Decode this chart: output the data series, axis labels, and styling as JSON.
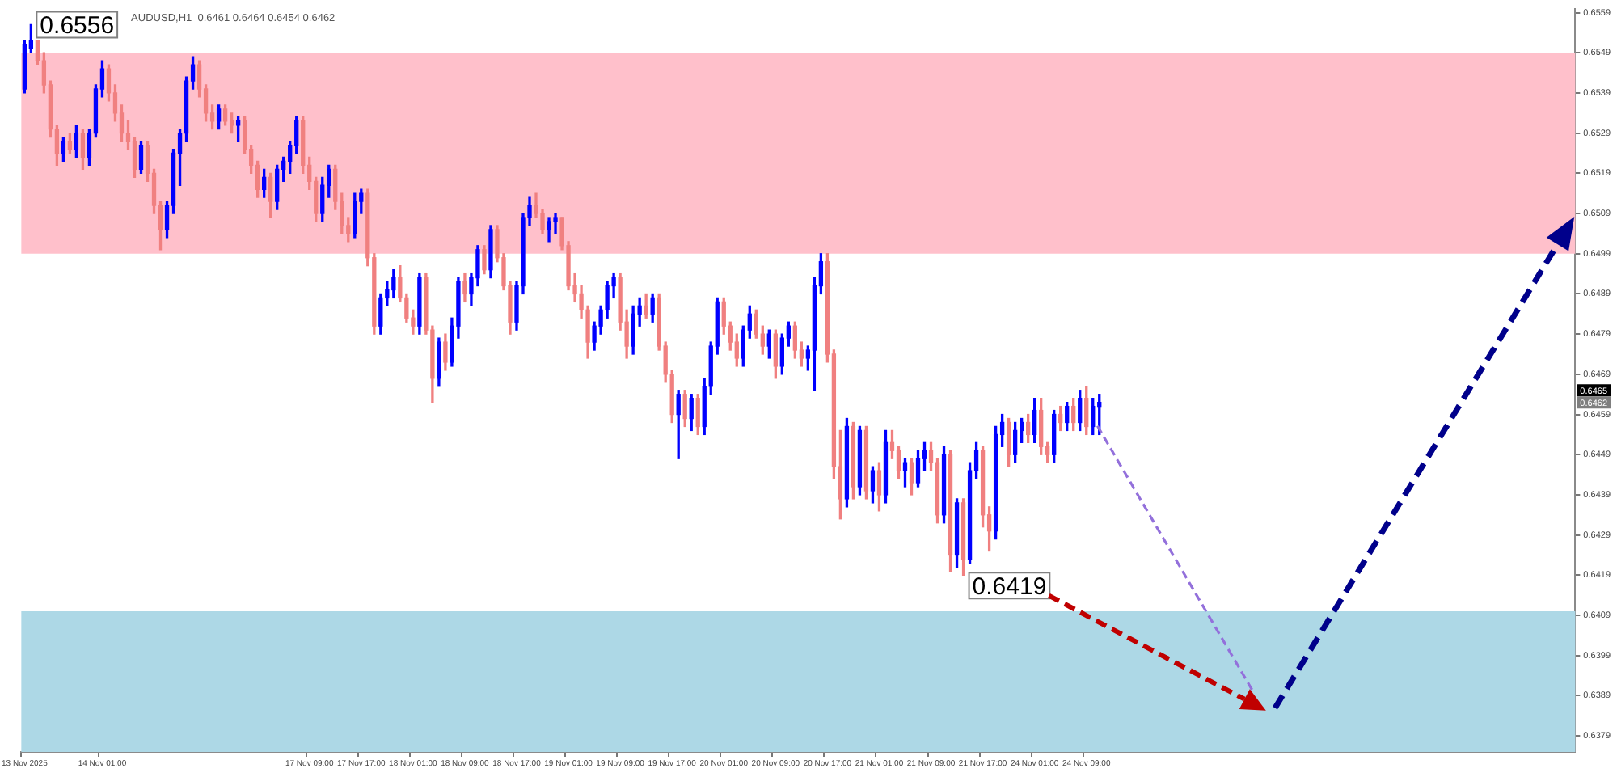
{
  "chart_data": {
    "type": "candlestick",
    "title": "AUDUSD,H1  0.6461 0.6464 0.6454 0.6462",
    "categories": [
      "13 Nov 2025",
      null,
      null,
      null,
      null,
      null,
      null,
      null,
      null,
      null,
      null,
      null,
      "14 Nov 01:00",
      null,
      null,
      null,
      null,
      null,
      null,
      null,
      null,
      null,
      null,
      null,
      null,
      null,
      null,
      null,
      null,
      null,
      null,
      null,
      null,
      null,
      null,
      null,
      null,
      null,
      null,
      null,
      null,
      null,
      null,
      null,
      "17 Nov 09:00",
      null,
      null,
      null,
      null,
      null,
      null,
      null,
      "17 Nov 17:00",
      null,
      null,
      null,
      null,
      null,
      null,
      null,
      "18 Nov 01:00",
      null,
      null,
      null,
      null,
      null,
      null,
      null,
      "18 Nov 09:00",
      null,
      null,
      null,
      null,
      null,
      null,
      null,
      "18 Nov 17:00",
      null,
      null,
      null,
      null,
      null,
      null,
      null,
      "19 Nov 01:00",
      null,
      null,
      null,
      null,
      null,
      null,
      null,
      "19 Nov 09:00",
      null,
      null,
      null,
      null,
      null,
      null,
      null,
      "19 Nov 17:00",
      null,
      null,
      null,
      null,
      null,
      null,
      null,
      "20 Nov 01:00",
      null,
      null,
      null,
      null,
      null,
      null,
      null,
      "20 Nov 09:00",
      null,
      null,
      null,
      null,
      null,
      null,
      null,
      "20 Nov 17:00",
      null,
      null,
      null,
      null,
      null,
      null,
      null,
      "21 Nov 01:00",
      null,
      null,
      null,
      null,
      null,
      null,
      null,
      "21 Nov 09:00",
      null,
      null,
      null,
      null,
      null,
      null,
      null,
      "21 Nov 17:00",
      null,
      null,
      null,
      null,
      null,
      null,
      null,
      "24 Nov 01:00",
      null,
      null,
      null,
      null,
      null,
      null,
      null,
      "24 Nov 09:00",
      null,
      null,
      null,
      null,
      null,
      null,
      null,
      null,
      null,
      null,
      null,
      null,
      null,
      null,
      null,
      null,
      null,
      null,
      null,
      null,
      null,
      null,
      null,
      null,
      null,
      null,
      null,
      null,
      null,
      null,
      null,
      null,
      null,
      null,
      null,
      null,
      null,
      null,
      null,
      null,
      null,
      null,
      null,
      null,
      null,
      null,
      null,
      null,
      null,
      null,
      null,
      null,
      null,
      null,
      null,
      null,
      null,
      null,
      null,
      null,
      null,
      null,
      null,
      null,
      null,
      null,
      null,
      null,
      null,
      null,
      null,
      null,
      null,
      null,
      null
    ],
    "ohlc": [
      [
        0.654,
        0.6552,
        0.6539,
        0.6551
      ],
      [
        0.655,
        0.6556,
        0.6549,
        0.6552
      ],
      [
        0.6552,
        0.6552,
        0.6546,
        0.6547
      ],
      [
        0.6547,
        0.6549,
        0.6539,
        0.6541
      ],
      [
        0.6541,
        0.6542,
        0.6528,
        0.653
      ],
      [
        0.653,
        0.6531,
        0.6521,
        0.6524
      ],
      [
        0.6524,
        0.6528,
        0.6522,
        0.6527
      ],
      [
        0.6527,
        0.6529,
        0.6524,
        0.6525
      ],
      [
        0.6525,
        0.6531,
        0.6523,
        0.6529
      ],
      [
        0.6529,
        0.653,
        0.652,
        0.6523
      ],
      [
        0.6523,
        0.653,
        0.6521,
        0.6529
      ],
      [
        0.6529,
        0.6541,
        0.6528,
        0.654
      ],
      [
        0.654,
        0.6547,
        0.6538,
        0.6545
      ],
      [
        0.6545,
        0.6546,
        0.6537,
        0.6539
      ],
      [
        0.6539,
        0.6541,
        0.6532,
        0.6534
      ],
      [
        0.6534,
        0.6536,
        0.6527,
        0.6529
      ],
      [
        0.6529,
        0.6532,
        0.6525,
        0.6527
      ],
      [
        0.6527,
        0.6528,
        0.6518,
        0.652
      ],
      [
        0.652,
        0.6527,
        0.6519,
        0.6526
      ],
      [
        0.6526,
        0.6527,
        0.6517,
        0.6519
      ],
      [
        0.6519,
        0.652,
        0.6509,
        0.6511
      ],
      [
        0.6511,
        0.6512,
        0.65,
        0.6505
      ],
      [
        0.6505,
        0.6512,
        0.6503,
        0.6511
      ],
      [
        0.6511,
        0.6525,
        0.6509,
        0.6524
      ],
      [
        0.6524,
        0.653,
        0.6516,
        0.6529
      ],
      [
        0.6529,
        0.6543,
        0.6527,
        0.6542
      ],
      [
        0.6542,
        0.6548,
        0.654,
        0.6546
      ],
      [
        0.6546,
        0.6547,
        0.6538,
        0.654
      ],
      [
        0.654,
        0.6541,
        0.6532,
        0.6534
      ],
      [
        0.6534,
        0.6536,
        0.653,
        0.6532
      ],
      [
        0.6532,
        0.6536,
        0.653,
        0.6535
      ],
      [
        0.6535,
        0.6536,
        0.6531,
        0.6532
      ],
      [
        0.6532,
        0.6534,
        0.6529,
        0.6531
      ],
      [
        0.6531,
        0.6533,
        0.6527,
        0.6532
      ],
      [
        0.6532,
        0.6533,
        0.6524,
        0.6525
      ],
      [
        0.6525,
        0.6526,
        0.6519,
        0.6521
      ],
      [
        0.6521,
        0.6522,
        0.6513,
        0.6515
      ],
      [
        0.6515,
        0.652,
        0.6513,
        0.6518
      ],
      [
        0.6518,
        0.6519,
        0.6508,
        0.6512
      ],
      [
        0.6512,
        0.6521,
        0.651,
        0.652
      ],
      [
        0.652,
        0.6523,
        0.6517,
        0.6522
      ],
      [
        0.6522,
        0.6527,
        0.6519,
        0.6526
      ],
      [
        0.6526,
        0.6533,
        0.6524,
        0.6532
      ],
      [
        0.6532,
        0.6533,
        0.6519,
        0.6521
      ],
      [
        0.6521,
        0.6523,
        0.6515,
        0.6517
      ],
      [
        0.6517,
        0.6518,
        0.6507,
        0.6509
      ],
      [
        0.6509,
        0.6518,
        0.6507,
        0.6516
      ],
      [
        0.6516,
        0.6521,
        0.6513,
        0.652
      ],
      [
        0.652,
        0.6521,
        0.651,
        0.6512
      ],
      [
        0.6512,
        0.6514,
        0.6504,
        0.6506
      ],
      [
        0.6506,
        0.6508,
        0.6502,
        0.6504
      ],
      [
        0.6504,
        0.6514,
        0.6503,
        0.6512
      ],
      [
        0.6512,
        0.6515,
        0.6509,
        0.6514
      ],
      [
        0.6514,
        0.6515,
        0.6496,
        0.6498
      ],
      [
        0.6498,
        0.6499,
        0.6479,
        0.6481
      ],
      [
        0.6481,
        0.6489,
        0.6479,
        0.6488
      ],
      [
        0.6488,
        0.6492,
        0.6486,
        0.649
      ],
      [
        0.649,
        0.6495,
        0.6488,
        0.6493
      ],
      [
        0.6493,
        0.6496,
        0.6487,
        0.6488
      ],
      [
        0.6488,
        0.6489,
        0.6482,
        0.6483
      ],
      [
        0.6483,
        0.6485,
        0.6479,
        0.6481
      ],
      [
        0.6481,
        0.6494,
        0.6479,
        0.6493
      ],
      [
        0.6493,
        0.6494,
        0.6479,
        0.648
      ],
      [
        0.648,
        0.6481,
        0.6462,
        0.6468
      ],
      [
        0.6468,
        0.6478,
        0.6466,
        0.6477
      ],
      [
        0.6477,
        0.6479,
        0.647,
        0.6472
      ],
      [
        0.6472,
        0.6483,
        0.6471,
        0.6481
      ],
      [
        0.6481,
        0.6493,
        0.6478,
        0.6492
      ],
      [
        0.6492,
        0.6494,
        0.6487,
        0.6489
      ],
      [
        0.6489,
        0.6494,
        0.6486,
        0.6493
      ],
      [
        0.6493,
        0.6501,
        0.6491,
        0.65
      ],
      [
        0.65,
        0.6501,
        0.6494,
        0.6495
      ],
      [
        0.6495,
        0.6506,
        0.6493,
        0.6505
      ],
      [
        0.6505,
        0.6506,
        0.6497,
        0.6498
      ],
      [
        0.6498,
        0.6499,
        0.649,
        0.6491
      ],
      [
        0.6491,
        0.6492,
        0.6479,
        0.6482
      ],
      [
        0.6482,
        0.6492,
        0.648,
        0.6491
      ],
      [
        0.6491,
        0.6509,
        0.6489,
        0.6508
      ],
      [
        0.6508,
        0.6513,
        0.6506,
        0.6511
      ],
      [
        0.6511,
        0.6514,
        0.6508,
        0.6509
      ],
      [
        0.6509,
        0.651,
        0.6504,
        0.6505
      ],
      [
        0.6505,
        0.6508,
        0.6502,
        0.6507
      ],
      [
        0.6507,
        0.6509,
        0.6504,
        0.6508
      ],
      [
        0.6508,
        0.6508,
        0.65,
        0.6501
      ],
      [
        0.6501,
        0.6502,
        0.649,
        0.6491
      ],
      [
        0.6491,
        0.6494,
        0.6487,
        0.6489
      ],
      [
        0.6489,
        0.6491,
        0.6483,
        0.6485
      ],
      [
        0.6485,
        0.6486,
        0.6473,
        0.6477
      ],
      [
        0.6477,
        0.6482,
        0.6475,
        0.6481
      ],
      [
        0.6481,
        0.6486,
        0.6479,
        0.6485
      ],
      [
        0.6485,
        0.6492,
        0.6483,
        0.6491
      ],
      [
        0.6491,
        0.6494,
        0.6488,
        0.6493
      ],
      [
        0.6493,
        0.6494,
        0.648,
        0.6482
      ],
      [
        0.6482,
        0.6485,
        0.6473,
        0.6476
      ],
      [
        0.6476,
        0.6486,
        0.6474,
        0.6484
      ],
      [
        0.6484,
        0.6488,
        0.6481,
        0.6486
      ],
      [
        0.6486,
        0.6489,
        0.6483,
        0.6484
      ],
      [
        0.6484,
        0.6489,
        0.6482,
        0.6488
      ],
      [
        0.6488,
        0.6489,
        0.6475,
        0.6476
      ],
      [
        0.6476,
        0.6477,
        0.6467,
        0.6469
      ],
      [
        0.6469,
        0.647,
        0.6457,
        0.6459
      ],
      [
        0.6459,
        0.6465,
        0.6448,
        0.6464
      ],
      [
        0.6464,
        0.6465,
        0.6456,
        0.6458
      ],
      [
        0.6458,
        0.6464,
        0.6455,
        0.6463
      ],
      [
        0.6463,
        0.6464,
        0.6454,
        0.6456
      ],
      [
        0.6456,
        0.6468,
        0.6454,
        0.6466
      ],
      [
        0.6466,
        0.6477,
        0.6464,
        0.6476
      ],
      [
        0.6476,
        0.6488,
        0.6474,
        0.6487
      ],
      [
        0.6487,
        0.6488,
        0.6479,
        0.6481
      ],
      [
        0.6481,
        0.6482,
        0.6475,
        0.6477
      ],
      [
        0.6477,
        0.6479,
        0.6471,
        0.6473
      ],
      [
        0.6473,
        0.6481,
        0.6471,
        0.648
      ],
      [
        0.648,
        0.6486,
        0.6478,
        0.6484
      ],
      [
        0.6484,
        0.6485,
        0.6478,
        0.6479
      ],
      [
        0.6479,
        0.6481,
        0.6474,
        0.6476
      ],
      [
        0.6476,
        0.648,
        0.6473,
        0.6479
      ],
      [
        0.6479,
        0.648,
        0.6468,
        0.6471
      ],
      [
        0.6471,
        0.6479,
        0.6469,
        0.6478
      ],
      [
        0.6478,
        0.6482,
        0.6476,
        0.6481
      ],
      [
        0.6481,
        0.6482,
        0.6473,
        0.6475
      ],
      [
        0.6475,
        0.6477,
        0.6471,
        0.6473
      ],
      [
        0.6473,
        0.6476,
        0.647,
        0.6475
      ],
      [
        0.6475,
        0.6493,
        0.6465,
        0.6491
      ],
      [
        0.6491,
        0.6499,
        0.6489,
        0.6497
      ],
      [
        0.6497,
        0.6499,
        0.6472,
        0.6474
      ],
      [
        0.6474,
        0.6475,
        0.6443,
        0.6446
      ],
      [
        0.6446,
        0.6455,
        0.6433,
        0.6438
      ],
      [
        0.6438,
        0.6458,
        0.6436,
        0.6456
      ],
      [
        0.6456,
        0.6457,
        0.6438,
        0.6441
      ],
      [
        0.6441,
        0.6456,
        0.6439,
        0.6455
      ],
      [
        0.6455,
        0.6456,
        0.6438,
        0.644
      ],
      [
        0.644,
        0.6446,
        0.6437,
        0.6445
      ],
      [
        0.6445,
        0.6447,
        0.6435,
        0.6439
      ],
      [
        0.6439,
        0.6455,
        0.6437,
        0.6452
      ],
      [
        0.6452,
        0.6455,
        0.6448,
        0.645
      ],
      [
        0.645,
        0.6451,
        0.6443,
        0.6445
      ],
      [
        0.6445,
        0.6448,
        0.6441,
        0.6447
      ],
      [
        0.6447,
        0.6448,
        0.6439,
        0.6442
      ],
      [
        0.6442,
        0.645,
        0.6441,
        0.6448
      ],
      [
        0.6448,
        0.6452,
        0.6445,
        0.645
      ],
      [
        0.645,
        0.6452,
        0.6445,
        0.6447
      ],
      [
        0.6447,
        0.6448,
        0.6432,
        0.6434
      ],
      [
        0.6434,
        0.6451,
        0.6432,
        0.6449
      ],
      [
        0.6449,
        0.645,
        0.642,
        0.6424
      ],
      [
        0.6424,
        0.6438,
        0.6421,
        0.6437
      ],
      [
        0.6437,
        0.6438,
        0.6419,
        0.6423
      ],
      [
        0.6423,
        0.6447,
        0.6422,
        0.6445
      ],
      [
        0.6445,
        0.6452,
        0.6443,
        0.645
      ],
      [
        0.645,
        0.6451,
        0.6431,
        0.6434
      ],
      [
        0.6434,
        0.6436,
        0.6425,
        0.643
      ],
      [
        0.643,
        0.6456,
        0.6428,
        0.6454
      ],
      [
        0.6454,
        0.6459,
        0.6451,
        0.6457
      ],
      [
        0.6457,
        0.6458,
        0.6446,
        0.6449
      ],
      [
        0.6449,
        0.6457,
        0.6447,
        0.6455
      ],
      [
        0.6455,
        0.6458,
        0.6452,
        0.6457
      ],
      [
        0.6457,
        0.6459,
        0.6452,
        0.6454
      ],
      [
        0.6454,
        0.6463,
        0.6452,
        0.646
      ],
      [
        0.646,
        0.6463,
        0.6449,
        0.6451
      ],
      [
        0.6451,
        0.6452,
        0.6447,
        0.6449
      ],
      [
        0.6449,
        0.646,
        0.6447,
        0.6459
      ],
      [
        0.6459,
        0.6461,
        0.6455,
        0.6457
      ],
      [
        0.6457,
        0.6462,
        0.6455,
        0.6461
      ],
      [
        0.6461,
        0.6463,
        0.6455,
        0.6457
      ],
      [
        0.6457,
        0.6465,
        0.6455,
        0.6463
      ],
      [
        0.6463,
        0.6466,
        0.6454,
        0.6456
      ],
      [
        0.6456,
        0.6463,
        0.6454,
        0.6461
      ],
      [
        0.6461,
        0.6464,
        0.6454,
        0.6462
      ],
      null,
      null,
      null,
      null,
      null,
      null,
      null,
      null,
      null,
      null,
      null,
      null,
      null,
      null,
      null,
      null,
      null,
      null,
      null,
      null,
      null,
      null,
      null,
      null,
      null,
      null,
      null,
      null,
      null,
      null,
      null,
      null,
      null,
      null,
      null,
      null,
      null,
      null,
      null,
      null,
      null,
      null,
      null,
      null,
      null,
      null,
      null,
      null,
      null,
      null,
      null,
      null,
      null,
      null,
      null,
      null,
      null,
      null,
      null,
      null,
      null,
      null,
      null,
      null,
      null,
      null,
      null,
      null,
      null,
      null,
      null,
      null,
      null
    ],
    "colors": [
      "#0000ff",
      "#0000ff",
      "#f08080",
      "#f08080",
      "#f08080",
      "#f08080",
      "#0000ff",
      "#f08080",
      "#0000ff",
      "#f08080",
      "#0000ff",
      "#0000ff",
      "#0000ff",
      "#f08080",
      "#f08080",
      "#f08080",
      "#f08080",
      "#f08080",
      "#0000ff",
      "#f08080",
      "#f08080",
      "#f08080",
      "#0000ff",
      "#0000ff",
      "#0000ff",
      "#0000ff",
      "#0000ff",
      "#f08080",
      "#f08080",
      "#f08080",
      "#0000ff",
      "#f08080",
      "#f08080",
      "#0000ff",
      "#f08080",
      "#f08080",
      "#f08080",
      "#0000ff",
      "#f08080",
      "#0000ff",
      "#0000ff",
      "#0000ff",
      "#0000ff",
      "#f08080",
      "#f08080",
      "#f08080",
      "#0000ff",
      "#0000ff",
      "#f08080",
      "#f08080",
      "#f08080",
      "#0000ff",
      "#0000ff",
      "#f08080",
      "#f08080",
      "#0000ff",
      "#0000ff",
      "#0000ff",
      "#f08080",
      "#f08080",
      "#f08080",
      "#0000ff",
      "#f08080",
      "#f08080",
      "#0000ff",
      "#f08080",
      "#0000ff",
      "#0000ff",
      "#f08080",
      "#0000ff",
      "#0000ff",
      "#f08080",
      "#0000ff",
      "#f08080",
      "#f08080",
      "#f08080",
      "#0000ff",
      "#0000ff",
      "#0000ff",
      "#f08080",
      "#f08080",
      "#0000ff",
      "#0000ff",
      "#f08080",
      "#f08080",
      "#f08080",
      "#f08080",
      "#f08080",
      "#0000ff",
      "#0000ff",
      "#0000ff",
      "#0000ff",
      "#f08080",
      "#f08080",
      "#0000ff",
      "#0000ff",
      "#f08080",
      "#0000ff",
      "#f08080",
      "#f08080",
      "#f08080",
      "#0000ff",
      "#f08080",
      "#0000ff",
      "#f08080",
      "#0000ff",
      "#0000ff",
      "#0000ff",
      "#f08080",
      "#f08080",
      "#f08080",
      "#0000ff",
      "#0000ff",
      "#f08080",
      "#f08080",
      "#0000ff",
      "#f08080",
      "#0000ff",
      "#0000ff",
      "#f08080",
      "#f08080",
      "#0000ff",
      "#0000ff",
      "#0000ff",
      "#f08080",
      "#f08080",
      "#f08080",
      "#0000ff",
      "#f08080",
      "#0000ff",
      "#f08080",
      "#0000ff",
      "#f08080",
      "#0000ff",
      "#f08080",
      "#f08080",
      "#0000ff",
      "#f08080",
      "#0000ff",
      "#0000ff",
      "#f08080",
      "#f08080",
      "#0000ff",
      "#f08080",
      "#0000ff",
      "#f08080",
      "#0000ff",
      "#0000ff",
      "#f08080",
      "#f08080",
      "#0000ff",
      "#0000ff",
      "#f08080",
      "#0000ff",
      "#0000ff",
      "#f08080",
      "#0000ff",
      "#f08080",
      "#f08080",
      "#0000ff",
      "#f08080",
      "#0000ff",
      "#f08080",
      "#0000ff",
      "#f08080",
      "#0000ff",
      "#0000ff",
      null,
      null,
      null,
      null,
      null,
      null,
      null,
      null,
      null,
      null,
      null,
      null,
      null,
      null,
      null,
      null,
      null,
      null,
      null,
      null,
      null,
      null,
      null,
      null,
      null,
      null,
      null,
      null,
      null,
      null,
      null,
      null,
      null,
      null,
      null,
      null,
      null,
      null,
      null,
      null,
      null,
      null,
      null,
      null,
      null,
      null,
      null,
      null,
      null,
      null,
      null,
      null,
      null,
      null,
      null,
      null,
      null,
      null,
      null,
      null,
      null,
      null,
      null,
      null,
      null,
      null,
      null,
      null,
      null,
      null,
      null,
      null,
      null
    ],
    "ylim": [
      0.6375,
      0.656
    ],
    "yticks": [
      0.6379,
      0.6389,
      0.6399,
      0.6409,
      0.6419,
      0.6429,
      0.6439,
      0.6449,
      0.6459,
      0.6469,
      0.6479,
      0.6489,
      0.6499,
      0.6509,
      0.6519,
      0.6529,
      0.6539,
      0.6549,
      0.6559
    ],
    "grid": false,
    "legend": false,
    "bands": [
      {
        "axis": "y",
        "from": 0.6499,
        "to": 0.6549,
        "color": "#ffc0cb"
      },
      {
        "axis": "y",
        "from": 0.6375,
        "to": 0.641,
        "color": "#add8e6"
      }
    ],
    "annotations": [
      "0.6556",
      "0.6419",
      "0.6465",
      "0.6462"
    ]
  }
}
